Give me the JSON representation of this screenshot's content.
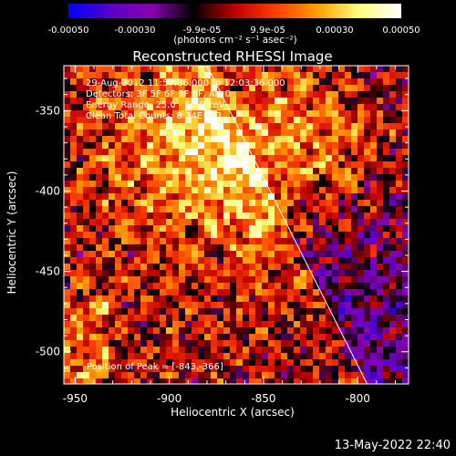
{
  "colorbar": {
    "ticks": [
      {
        "value": -0.0005,
        "label": "-0.00050"
      },
      {
        "value": -0.0003,
        "label": "-0.00030"
      },
      {
        "value": -9.9e-05,
        "label": "-9.9e-05"
      },
      {
        "value": 9.9e-05,
        "label": "9.9e-05"
      },
      {
        "value": 0.0003,
        "label": "0.00030"
      },
      {
        "value": 0.0005,
        "label": "0.00050"
      }
    ],
    "unit_label": "(photons cm⁻² s⁻¹ asec⁻²)",
    "range": [
      -0.0005,
      0.0005
    ],
    "colors": [
      "#0000ff",
      "#5a00c8",
      "#8a00b0",
      "#000000",
      "#c00000",
      "#ff4000",
      "#ffa000",
      "#ffff80",
      "#ffffff"
    ]
  },
  "chart_data": {
    "type": "heatmap",
    "title": "Reconstructed RHESSI Image",
    "xlabel": "Heliocentric X (arcsec)",
    "ylabel": "Heliocentric Y (arcsec)",
    "xlim": [
      -956,
      -773
    ],
    "ylim": [
      -520,
      -322
    ],
    "x_ticks": [
      -950,
      -900,
      -850,
      -800
    ],
    "y_ticks": [
      -350,
      -400,
      -450,
      -500
    ],
    "limb_line": [
      {
        "x": -880,
        "y": -322
      },
      {
        "x": -795,
        "y": -520
      }
    ],
    "annotations": [
      "29-Aug-2012 11:57:36.000 to 12:03:36.000",
      "Detectors: 3F 5F 6F 7F 8F, Att 0",
      "Energy Range: 25.0 - 50.0 keV",
      "Clean    Total Counts: 8.34E+03"
    ],
    "peak_label": "Position of Peak = [-843,-366]",
    "peak": {
      "x": -843,
      "y": -366
    },
    "colors": {
      "limb": "#ffffff",
      "axes": "#ffffff"
    }
  },
  "timestamp": "13-May-2022 22:40"
}
